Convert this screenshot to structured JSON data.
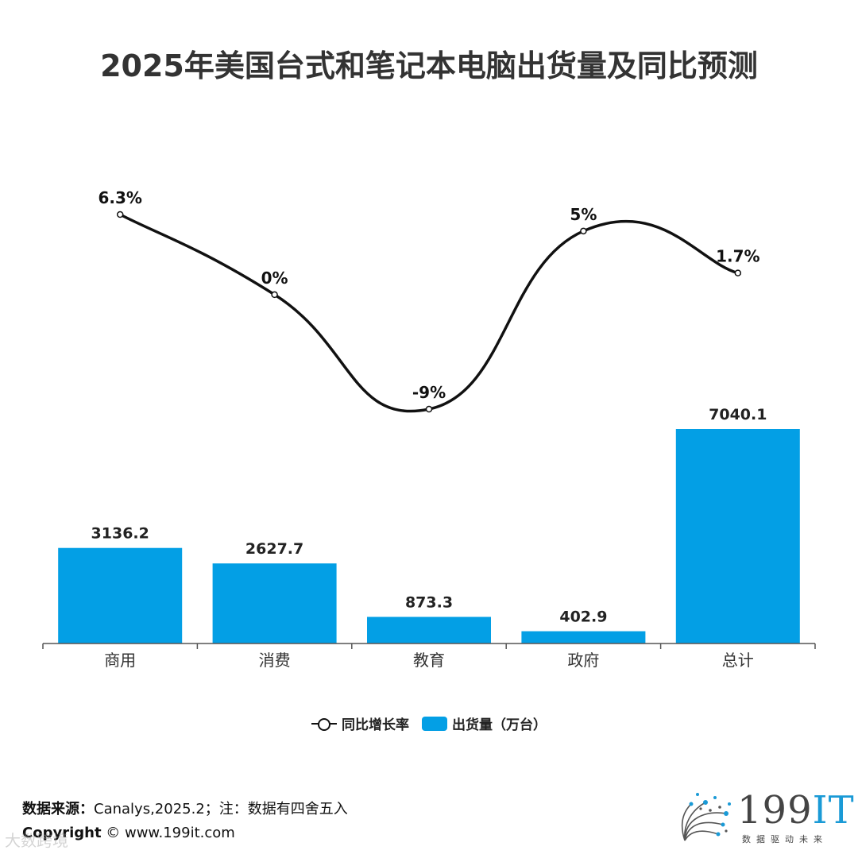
{
  "title": "2025年美国台式和笔记本电脑出货量及同比预测",
  "chart_data": {
    "type": "bar+line",
    "categories": [
      "商用",
      "消费",
      "教育",
      "政府",
      "总计"
    ],
    "series": [
      {
        "name": "出货量（万台）",
        "type": "bar",
        "values": [
          3136.2,
          2627.7,
          873.3,
          402.9,
          7040.1
        ],
        "labels": [
          "3136.2",
          "2627.7",
          "873.3",
          "402.9",
          "7040.1"
        ],
        "color": "#039fe5"
      },
      {
        "name": "同比增长率",
        "type": "line",
        "values": [
          6.3,
          0,
          -9,
          5,
          1.7
        ],
        "labels": [
          "6.3%",
          "0%",
          "-9%",
          "5%",
          "1.7%"
        ],
        "color": "#111111"
      }
    ],
    "ylim_bar": [
      0,
      7040.1
    ],
    "ylim_line": [
      -9,
      6.3
    ],
    "legend_position": "bottom-center"
  },
  "legend": {
    "line_label": "同比增长率",
    "bar_label": "出货量（万台）"
  },
  "footer": {
    "source_label": "数据来源：",
    "source_text": "Canalys,2025.2；注：数据有四舍五入",
    "copyright_label": "Copyright",
    "copyright_text": " ©  www.199it.com"
  },
  "logo": {
    "brand_num": "199",
    "brand_it": "IT",
    "tagline": "数据驱动未来"
  },
  "watermark": "大数跨境"
}
